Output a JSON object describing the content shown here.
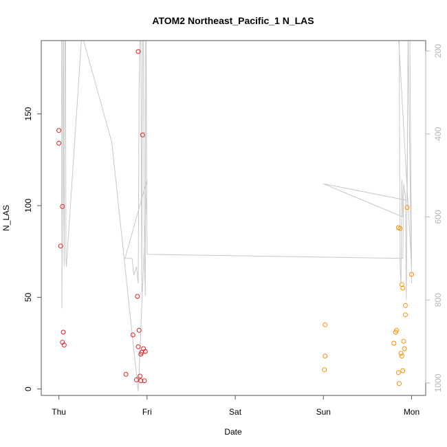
{
  "chart_data": {
    "type": "scatter",
    "title": "ATOM2 Northeast_Pacific_1 N_LAS",
    "xlabel": "Date",
    "ylabel": "N_LAS",
    "x_ticks": [
      {
        "day": 0,
        "label": "Thu"
      },
      {
        "day": 1,
        "label": "Fri"
      },
      {
        "day": 2,
        "label": "Sat"
      },
      {
        "day": 3,
        "label": "Sun"
      },
      {
        "day": 4,
        "label": "Mon"
      }
    ],
    "xlim": [
      -0.2,
      4.16
    ],
    "ylim": [
      -3.5,
      190
    ],
    "y_ticks": [
      0,
      50,
      100,
      150
    ],
    "right_axis": {
      "ticks": [
        200,
        400,
        600,
        800,
        1000
      ],
      "reversed": true,
      "lim": [
        175,
        1030
      ],
      "color": "#b5b5b5"
    },
    "series": [
      {
        "color": "#e31a1c",
        "points": [
          [
            0.0,
            141
          ],
          [
            0.0,
            134
          ],
          [
            0.02,
            78
          ],
          [
            0.04,
            99.5
          ],
          [
            0.05,
            31
          ],
          [
            0.04,
            25.5
          ],
          [
            0.06,
            24
          ],
          [
            0.76,
            8
          ],
          [
            0.84,
            29.5
          ],
          [
            0.88,
            5
          ],
          [
            0.9,
            23
          ],
          [
            0.89,
            50.5
          ],
          [
            0.91,
            32
          ],
          [
            0.92,
            7
          ],
          [
            0.93,
            19
          ],
          [
            0.94,
            20
          ],
          [
            0.93,
            4.5
          ],
          [
            0.96,
            22
          ],
          [
            0.97,
            4.5
          ],
          [
            0.98,
            20.5
          ],
          [
            0.9,
            184
          ],
          [
            0.95,
            138.5
          ]
        ]
      },
      {
        "color": "#ff8c00",
        "points": [
          [
            3.02,
            35
          ],
          [
            3.02,
            18
          ],
          [
            3.01,
            10.5
          ],
          [
            3.8,
            25
          ],
          [
            3.82,
            31
          ],
          [
            3.83,
            32
          ],
          [
            3.85,
            9
          ],
          [
            3.86,
            3
          ],
          [
            3.85,
            88
          ],
          [
            3.87,
            87.5
          ],
          [
            3.88,
            19.5
          ],
          [
            3.89,
            18
          ],
          [
            3.89,
            57
          ],
          [
            3.9,
            10
          ],
          [
            3.9,
            55
          ],
          [
            3.91,
            26
          ],
          [
            3.92,
            22
          ],
          [
            3.93,
            40.5
          ],
          [
            3.93,
            45.5
          ],
          [
            3.95,
            99
          ],
          [
            4.0,
            62.5
          ]
        ]
      }
    ],
    "depth_line": {
      "color": "#c8c8c8",
      "points": [
        [
          0.0,
          160
        ],
        [
          0.03,
          160
        ],
        [
          0.035,
          820
        ],
        [
          0.04,
          530
        ],
        [
          0.045,
          160
        ],
        [
          0.05,
          160
        ],
        [
          0.055,
          600
        ],
        [
          0.06,
          720
        ],
        [
          0.065,
          280
        ],
        [
          0.07,
          160
        ],
        [
          0.075,
          160
        ],
        [
          0.08,
          700
        ],
        [
          0.085,
          720
        ],
        [
          0.26,
          160
        ],
        [
          0.6,
          420
        ],
        [
          0.9,
          1020
        ],
        [
          1.0,
          510
        ],
        [
          0.75,
          700
        ],
        [
          0.83,
          700
        ],
        [
          0.85,
          740
        ],
        [
          0.88,
          720
        ],
        [
          0.9,
          760
        ],
        [
          0.91,
          290
        ],
        [
          0.92,
          160
        ],
        [
          0.93,
          160
        ],
        [
          0.94,
          780
        ],
        [
          0.95,
          160
        ],
        [
          0.96,
          160
        ],
        [
          0.97,
          700
        ],
        [
          0.98,
          790
        ],
        [
          0.985,
          160
        ],
        [
          0.99,
          160
        ],
        [
          0.995,
          520
        ],
        [
          1.0,
          690
        ],
        [
          3.9,
          700
        ],
        [
          3.91,
          520
        ],
        [
          3.93,
          550
        ],
        [
          3.94,
          800
        ],
        [
          3.95,
          480
        ],
        [
          3.96,
          160
        ],
        [
          3.98,
          160
        ],
        [
          4.0,
          720
        ],
        [
          3.85,
          160
        ],
        [
          3.86,
          160
        ],
        [
          3.87,
          720
        ],
        [
          3.88,
          760
        ],
        [
          3.89,
          510
        ],
        [
          3.9,
          600
        ],
        [
          3.0,
          520
        ],
        [
          3.95,
          560
        ],
        [
          3.96,
          160
        ],
        [
          4.0,
          760
        ]
      ]
    }
  }
}
